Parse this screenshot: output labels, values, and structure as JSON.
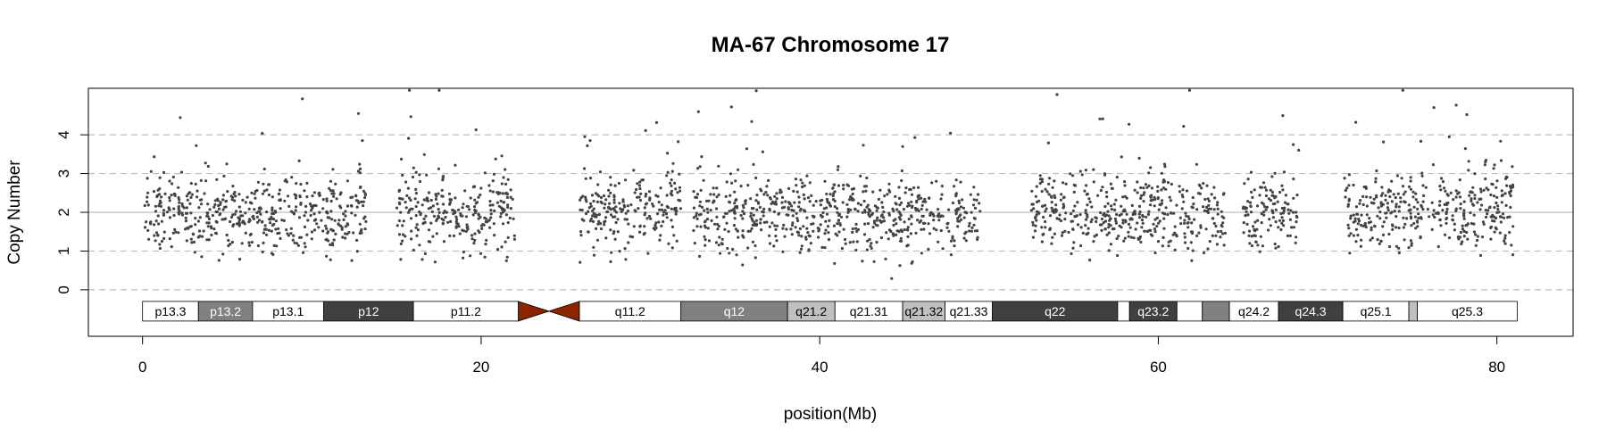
{
  "chart_data": {
    "type": "scatter",
    "title": "MA-67  Chromosome 17",
    "xlabel": "position(Mb)",
    "ylabel": "Copy Number",
    "xlim": [
      -3.2,
      84.5
    ],
    "ylim": [
      -1.2,
      5.2
    ],
    "x_ticks": [
      0,
      20,
      40,
      60,
      80
    ],
    "y_ticks": [
      0,
      1,
      2,
      3,
      4
    ],
    "reference_lines": {
      "solid": [
        2
      ],
      "dashed": [
        0,
        1,
        3,
        4
      ]
    },
    "point_color": "#444444",
    "centromere_color": "#8b2500",
    "centromere": [
      22.2,
      25.8
    ],
    "clusters": [
      {
        "range": [
          0.1,
          3.3
        ],
        "center": 2.0
      },
      {
        "range": [
          3.3,
          6.5
        ],
        "center": 1.9
      },
      {
        "range": [
          6.5,
          9.8
        ],
        "center": 2.0
      },
      {
        "range": [
          9.8,
          11.5
        ],
        "center": 1.9
      },
      {
        "range": [
          11.5,
          13.2
        ],
        "center": 2.0
      },
      {
        "range": [
          15.0,
          22.0
        ],
        "center": 2.0
      },
      {
        "range": [
          25.8,
          31.8
        ],
        "center": 2.0
      },
      {
        "range": [
          32.5,
          49.5
        ],
        "center": 1.95
      },
      {
        "range": [
          52.5,
          58.0
        ],
        "center": 2.0
      },
      {
        "range": [
          58.0,
          64.0
        ],
        "center": 1.95
      },
      {
        "range": [
          65.0,
          68.3
        ],
        "center": 1.9
      },
      {
        "range": [
          71.0,
          75.5
        ],
        "center": 2.0
      },
      {
        "range": [
          75.5,
          81.0
        ],
        "center": 2.05
      }
    ],
    "bands": [
      {
        "name": "p13.3",
        "start": 0.0,
        "end": 3.3,
        "stain": "#ffffff",
        "text": "#000000"
      },
      {
        "name": "p13.2",
        "start": 3.3,
        "end": 6.5,
        "stain": "#808080",
        "text": "#ffffff"
      },
      {
        "name": "p13.1",
        "start": 6.5,
        "end": 10.7,
        "stain": "#ffffff",
        "text": "#000000"
      },
      {
        "name": "p12",
        "start": 10.7,
        "end": 16.0,
        "stain": "#404040",
        "text": "#ffffff"
      },
      {
        "name": "p11.2",
        "start": 16.0,
        "end": 22.2,
        "stain": "#ffffff",
        "text": "#000000"
      },
      {
        "name": "q11.2",
        "start": 25.8,
        "end": 31.8,
        "stain": "#ffffff",
        "text": "#000000"
      },
      {
        "name": "q12",
        "start": 31.8,
        "end": 38.1,
        "stain": "#808080",
        "text": "#ffffff"
      },
      {
        "name": "q21.2",
        "start": 38.1,
        "end": 40.9,
        "stain": "#c0c0c0",
        "text": "#000000"
      },
      {
        "name": "q21.31",
        "start": 40.9,
        "end": 44.9,
        "stain": "#ffffff",
        "text": "#000000"
      },
      {
        "name": "q21.32",
        "start": 44.9,
        "end": 47.4,
        "stain": "#c0c0c0",
        "text": "#000000"
      },
      {
        "name": "q21.33",
        "start": 47.4,
        "end": 50.2,
        "stain": "#ffffff",
        "text": "#000000"
      },
      {
        "name": "q22",
        "start": 50.2,
        "end": 57.6,
        "stain": "#404040",
        "text": "#ffffff"
      },
      {
        "name": "",
        "start": 57.6,
        "end": 58.3,
        "stain": "#ffffff",
        "text": "#000000"
      },
      {
        "name": "q23.2",
        "start": 58.3,
        "end": 61.1,
        "stain": "#404040",
        "text": "#ffffff"
      },
      {
        "name": "",
        "start": 61.1,
        "end": 62.6,
        "stain": "#ffffff",
        "text": "#000000"
      },
      {
        "name": "",
        "start": 62.6,
        "end": 64.2,
        "stain": "#808080",
        "text": "#ffffff"
      },
      {
        "name": "q24.2",
        "start": 64.2,
        "end": 67.1,
        "stain": "#ffffff",
        "text": "#000000"
      },
      {
        "name": "q24.3",
        "start": 67.1,
        "end": 70.9,
        "stain": "#404040",
        "text": "#ffffff"
      },
      {
        "name": "q25.1",
        "start": 70.9,
        "end": 74.8,
        "stain": "#ffffff",
        "text": "#000000"
      },
      {
        "name": "",
        "start": 74.8,
        "end": 75.3,
        "stain": "#c0c0c0",
        "text": "#000000"
      },
      {
        "name": "q25.3",
        "start": 75.3,
        "end": 81.2,
        "stain": "#ffffff",
        "text": "#000000"
      }
    ]
  }
}
